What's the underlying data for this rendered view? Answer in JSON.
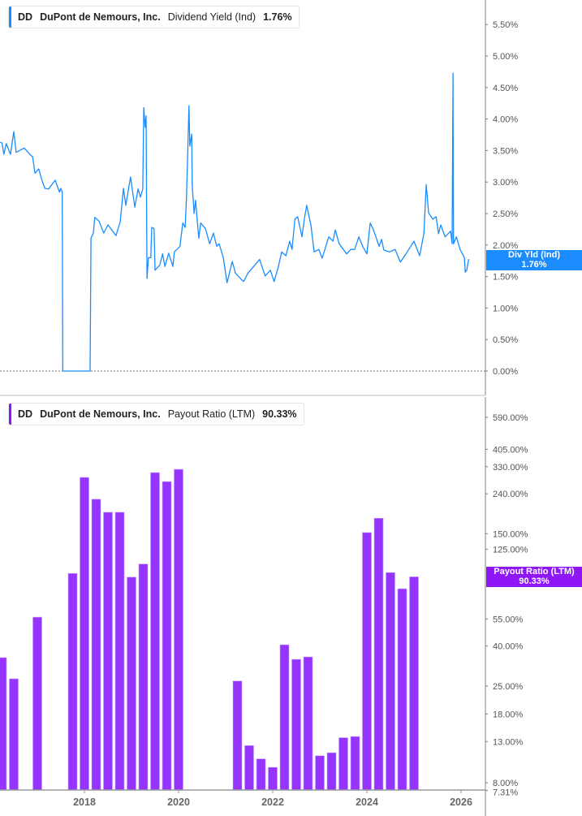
{
  "colors": {
    "yield": "#1a8cff",
    "payout": "#9533ff",
    "payout_badge": "#8f17f7"
  },
  "top_legend": {
    "ticker": "DD",
    "company": "DuPont de Nemours, Inc.",
    "metric": "Dividend Yield (Ind)",
    "value": "1.76%"
  },
  "top_badge": {
    "label": "Div Yld (Ind)",
    "value": "1.76%"
  },
  "bottom_legend": {
    "ticker": "DD",
    "company": "DuPont de Nemours, Inc.",
    "metric": "Payout Ratio (LTM)",
    "value": "90.33%"
  },
  "bottom_badge": {
    "label": "Payout Ratio (LTM)",
    "value": "90.33%"
  },
  "chart_data": [
    {
      "type": "line",
      "series_name": "Dividend Yield (Ind)",
      "x_unit": "year",
      "ylim": [
        0,
        5.5
      ],
      "y_ticks": [
        "0.00%",
        "0.50%",
        "1.00%",
        "1.50%",
        "2.00%",
        "2.50%",
        "3.00%",
        "3.50%",
        "4.00%",
        "4.50%",
        "5.00%",
        "5.50%"
      ],
      "y_tick_values": [
        0,
        0.5,
        1,
        1.5,
        2,
        2.5,
        3,
        3.5,
        4,
        4.5,
        5,
        5.5
      ],
      "zero_line": "dotted",
      "points": [
        [
          2016.21,
          3.63
        ],
        [
          2016.25,
          3.62
        ],
        [
          2016.29,
          3.44
        ],
        [
          2016.34,
          3.61
        ],
        [
          2016.43,
          3.44
        ],
        [
          2016.5,
          3.8
        ],
        [
          2016.55,
          3.47
        ],
        [
          2016.72,
          3.54
        ],
        [
          2016.84,
          3.44
        ],
        [
          2016.9,
          3.4
        ],
        [
          2016.95,
          3.14
        ],
        [
          2017.03,
          3.21
        ],
        [
          2017.1,
          3.02
        ],
        [
          2017.16,
          2.9
        ],
        [
          2017.24,
          2.89
        ],
        [
          2017.38,
          3.03
        ],
        [
          2017.47,
          2.84
        ],
        [
          2017.5,
          2.9
        ],
        [
          2017.53,
          2.84
        ],
        [
          2017.54,
          0
        ],
        [
          2018.12,
          0
        ],
        [
          2018.14,
          2.11
        ],
        [
          2018.19,
          2.19
        ],
        [
          2018.22,
          2.44
        ],
        [
          2018.31,
          2.38
        ],
        [
          2018.41,
          2.19
        ],
        [
          2018.5,
          2.32
        ],
        [
          2018.67,
          2.15
        ],
        [
          2018.76,
          2.37
        ],
        [
          2018.83,
          2.9
        ],
        [
          2018.88,
          2.63
        ],
        [
          2018.98,
          3.08
        ],
        [
          2019.07,
          2.6
        ],
        [
          2019.14,
          2.89
        ],
        [
          2019.19,
          2.76
        ],
        [
          2019.24,
          2.89
        ],
        [
          2019.26,
          4.18
        ],
        [
          2019.29,
          3.87
        ],
        [
          2019.31,
          4.05
        ],
        [
          2019.33,
          1.47
        ],
        [
          2019.36,
          1.8
        ],
        [
          2019.41,
          1.8
        ],
        [
          2019.43,
          2.28
        ],
        [
          2019.48,
          2.26
        ],
        [
          2019.5,
          1.6
        ],
        [
          2019.6,
          1.68
        ],
        [
          2019.66,
          1.86
        ],
        [
          2019.71,
          1.66
        ],
        [
          2019.79,
          1.87
        ],
        [
          2019.88,
          1.66
        ],
        [
          2019.91,
          1.89
        ],
        [
          2020.03,
          1.98
        ],
        [
          2020.09,
          2.35
        ],
        [
          2020.14,
          2.28
        ],
        [
          2020.17,
          2.8
        ],
        [
          2020.22,
          4.21
        ],
        [
          2020.24,
          3.57
        ],
        [
          2020.28,
          3.76
        ],
        [
          2020.29,
          2.95
        ],
        [
          2020.33,
          2.5
        ],
        [
          2020.36,
          2.71
        ],
        [
          2020.43,
          2.11
        ],
        [
          2020.47,
          2.35
        ],
        [
          2020.57,
          2.26
        ],
        [
          2020.66,
          2.02
        ],
        [
          2020.74,
          2.19
        ],
        [
          2020.81,
          1.98
        ],
        [
          2020.86,
          2.02
        ],
        [
          2020.95,
          1.8
        ],
        [
          2021.03,
          1.4
        ],
        [
          2021.14,
          1.74
        ],
        [
          2021.21,
          1.55
        ],
        [
          2021.38,
          1.42
        ],
        [
          2021.47,
          1.55
        ],
        [
          2021.72,
          1.77
        ],
        [
          2021.84,
          1.51
        ],
        [
          2021.95,
          1.6
        ],
        [
          2022.03,
          1.42
        ],
        [
          2022.12,
          1.66
        ],
        [
          2022.19,
          1.89
        ],
        [
          2022.28,
          1.83
        ],
        [
          2022.36,
          2.06
        ],
        [
          2022.41,
          1.93
        ],
        [
          2022.47,
          2.41
        ],
        [
          2022.53,
          2.45
        ],
        [
          2022.62,
          2.13
        ],
        [
          2022.67,
          2.41
        ],
        [
          2022.72,
          2.63
        ],
        [
          2022.81,
          2.32
        ],
        [
          2022.88,
          1.89
        ],
        [
          2022.98,
          1.93
        ],
        [
          2023.05,
          1.79
        ],
        [
          2023.19,
          2.13
        ],
        [
          2023.28,
          2.06
        ],
        [
          2023.33,
          2.24
        ],
        [
          2023.41,
          2.02
        ],
        [
          2023.57,
          1.86
        ],
        [
          2023.66,
          1.93
        ],
        [
          2023.74,
          1.93
        ],
        [
          2023.83,
          2.13
        ],
        [
          2023.91,
          1.98
        ],
        [
          2024.0,
          1.86
        ],
        [
          2024.07,
          2.35
        ],
        [
          2024.14,
          2.24
        ],
        [
          2024.26,
          1.98
        ],
        [
          2024.31,
          2.09
        ],
        [
          2024.36,
          1.92
        ],
        [
          2024.48,
          1.89
        ],
        [
          2024.6,
          1.93
        ],
        [
          2024.71,
          1.73
        ],
        [
          2024.83,
          1.86
        ],
        [
          2025.0,
          2.06
        ],
        [
          2025.12,
          1.83
        ],
        [
          2025.21,
          2.18
        ],
        [
          2025.26,
          2.96
        ],
        [
          2025.31,
          2.51
        ],
        [
          2025.4,
          2.41
        ],
        [
          2025.47,
          2.45
        ],
        [
          2025.52,
          2.18
        ],
        [
          2025.57,
          2.32
        ],
        [
          2025.66,
          2.13
        ],
        [
          2025.78,
          2.22
        ],
        [
          2025.81,
          2.02
        ],
        [
          2025.83,
          4.73
        ],
        [
          2025.84,
          2.02
        ],
        [
          2025.9,
          2.13
        ],
        [
          2025.98,
          1.93
        ],
        [
          2026.07,
          1.8
        ],
        [
          2026.09,
          1.57
        ],
        [
          2026.12,
          1.6
        ],
        [
          2026.16,
          1.77
        ],
        [
          2026.17,
          1.76
        ]
      ]
    },
    {
      "type": "bar",
      "series_name": "Payout Ratio (LTM)",
      "y_scale": "log",
      "ylim": [
        7.31,
        590
      ],
      "y_ticks": [
        "590.00%",
        "405.00%",
        "330.00%",
        "240.00%",
        "150.00%",
        "125.00%",
        "55.00%",
        "40.00%",
        "25.00%",
        "18.00%",
        "13.00%",
        "8.00%",
        "7.31%"
      ],
      "y_tick_values": [
        590,
        405,
        330,
        240,
        150,
        125,
        55,
        40,
        25,
        18,
        13,
        8,
        7.31
      ],
      "x_ticks": [
        "2018",
        "2020",
        "2022",
        "2024",
        "2026"
      ],
      "x_tick_values": [
        2018,
        2020,
        2022,
        2024,
        2026
      ],
      "bars": [
        [
          2016.25,
          34.9
        ],
        [
          2016.5,
          27.2
        ],
        [
          2017.0,
          56.2
        ],
        [
          2017.75,
          94
        ],
        [
          2018.0,
          291
        ],
        [
          2018.25,
          225
        ],
        [
          2018.5,
          193
        ],
        [
          2018.75,
          193
        ],
        [
          2019.0,
          90
        ],
        [
          2019.25,
          105
        ],
        [
          2019.5,
          308
        ],
        [
          2019.75,
          277
        ],
        [
          2020.0,
          320
        ],
        [
          2021.25,
          26.5
        ],
        [
          2021.5,
          12.4
        ],
        [
          2021.75,
          10.6
        ],
        [
          2022.0,
          9.6
        ],
        [
          2022.25,
          40.6
        ],
        [
          2022.5,
          34.2
        ],
        [
          2022.75,
          35.2
        ],
        [
          2023.0,
          11.0
        ],
        [
          2023.25,
          11.4
        ],
        [
          2023.5,
          13.6
        ],
        [
          2023.75,
          13.8
        ],
        [
          2024.0,
          152
        ],
        [
          2024.25,
          180
        ],
        [
          2024.5,
          95
        ],
        [
          2024.75,
          78.5
        ],
        [
          2025.0,
          90.33
        ]
      ]
    }
  ]
}
